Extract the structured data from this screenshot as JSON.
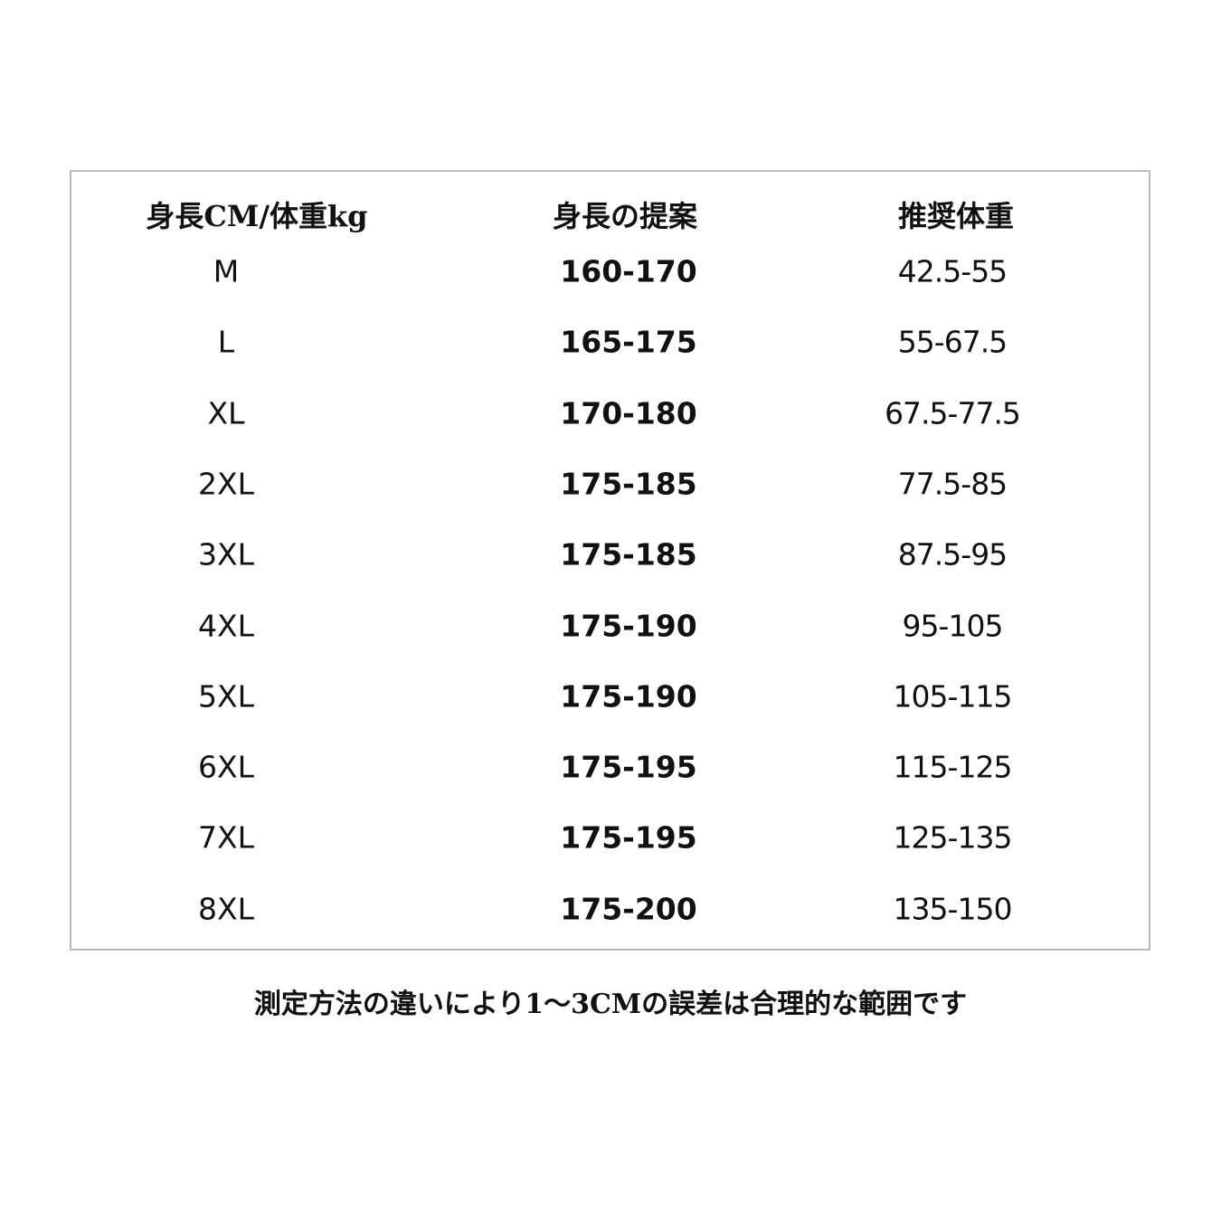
{
  "headers": [
    "身長CM/体重kg",
    "身長の提案",
    "推奨体重"
  ],
  "rows": [
    {
      "size": "M",
      "height": "160-170",
      "weight": "42.5-55"
    },
    {
      "size": "L",
      "height": "165-175",
      "weight": "55-67.5"
    },
    {
      "size": "XL",
      "height": "170-180",
      "weight": "67.5-77.5"
    },
    {
      "size": "2XL",
      "height": "175-185",
      "weight": "77.5-85"
    },
    {
      "size": "3XL",
      "height": "175-185",
      "weight": "87.5-95"
    },
    {
      "size": "4XL",
      "height": "175-190",
      "weight": "95-105"
    },
    {
      "size": "5XL",
      "height": "175-190",
      "weight": "105-115"
    },
    {
      "size": "6XL",
      "height": "175-195",
      "weight": "115-125"
    },
    {
      "size": "7XL",
      "height": "175-195",
      "weight": "125-135"
    },
    {
      "size": "8XL",
      "height": "175-200",
      "weight": "135-150"
    }
  ],
  "note": "測定方法の違いにより1〜3CMの誤差は合理的な範囲です"
}
